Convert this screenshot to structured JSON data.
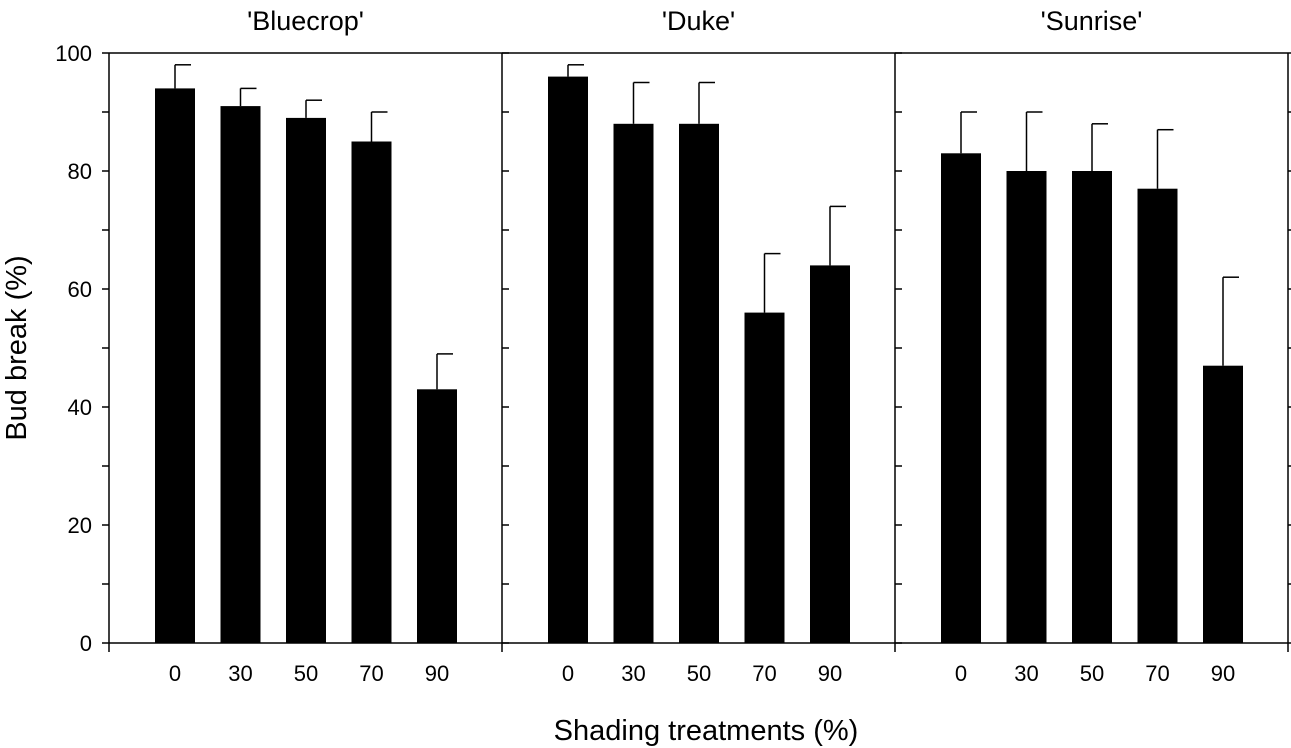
{
  "chart_data": {
    "type": "bar",
    "xlabel": "Shading treatments (%)",
    "ylabel": "Bud break (%)",
    "ylim": [
      0,
      100
    ],
    "yticks": [
      0,
      20,
      40,
      60,
      80,
      100
    ],
    "categories": [
      "0",
      "30",
      "50",
      "70",
      "90"
    ],
    "panels": [
      {
        "title": "'Bluecrop'",
        "values": [
          94,
          91,
          89,
          85,
          43
        ],
        "errors": [
          4,
          3,
          3,
          5,
          6
        ]
      },
      {
        "title": "'Duke'",
        "values": [
          96,
          88,
          88,
          56,
          64
        ],
        "errors": [
          2,
          7,
          7,
          10,
          10
        ]
      },
      {
        "title": "'Sunrise'",
        "values": [
          83,
          80,
          80,
          77,
          47
        ],
        "errors": [
          7,
          10,
          8,
          10,
          15
        ]
      }
    ]
  }
}
